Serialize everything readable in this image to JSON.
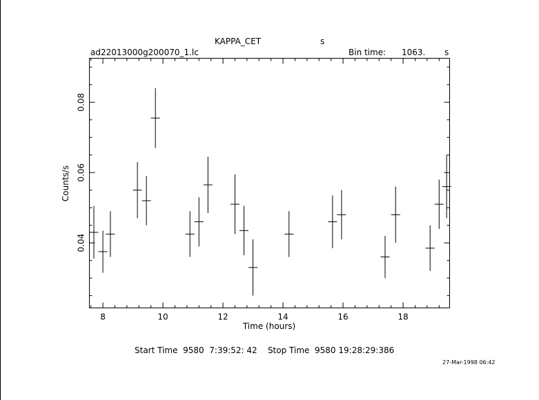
{
  "header": {
    "object": "KAPPA_CET",
    "object_unit": "s",
    "filename": "ad22013000g200070_1.lc",
    "bin_label": "Bin time:",
    "bin_value": "1063.",
    "bin_unit": "s"
  },
  "footer": {
    "times": "Start Time  9580  7:39:52: 42    Stop Time  9580 19:28:29:386",
    "date_stamp": "27-Mar-1998 06:42"
  },
  "chart_data": {
    "type": "scatter",
    "title": "KAPPA_CET",
    "xlabel": "Time (hours)",
    "ylabel": "Counts/s",
    "xlim": [
      7.55,
      19.55
    ],
    "ylim": [
      0.0215,
      0.0925
    ],
    "xticks": [
      8,
      10,
      12,
      14,
      16,
      18
    ],
    "xtick_labels": [
      "8",
      "10",
      "12",
      "14",
      "16",
      "18"
    ],
    "yticks": [
      0.04,
      0.06,
      0.08
    ],
    "ytick_labels": [
      "0.04",
      "0.06",
      "0.08"
    ],
    "grid": false,
    "series": [
      {
        "x": [
          7.7,
          8.0,
          8.25,
          9.15,
          9.45,
          9.75,
          10.9,
          11.2,
          11.5,
          12.4,
          12.7,
          13.0,
          14.2,
          15.65,
          15.95,
          17.4,
          17.75,
          18.9,
          19.2,
          19.45
        ],
        "xerr": [
          0.15,
          0.15,
          0.15,
          0.15,
          0.15,
          0.15,
          0.15,
          0.15,
          0.15,
          0.15,
          0.15,
          0.15,
          0.15,
          0.15,
          0.15,
          0.15,
          0.15,
          0.15,
          0.15,
          0.15
        ],
        "y": [
          0.043,
          0.0375,
          0.0425,
          0.055,
          0.052,
          0.0755,
          0.0425,
          0.046,
          0.0565,
          0.051,
          0.0435,
          0.033,
          0.0425,
          0.046,
          0.048,
          0.036,
          0.048,
          0.0385,
          0.051,
          0.056
        ],
        "yerr": [
          0.0075,
          0.006,
          0.0065,
          0.008,
          0.007,
          0.0085,
          0.0065,
          0.007,
          0.008,
          0.0085,
          0.007,
          0.008,
          0.0065,
          0.0075,
          0.007,
          0.006,
          0.008,
          0.0065,
          0.007,
          0.009
        ]
      }
    ]
  }
}
